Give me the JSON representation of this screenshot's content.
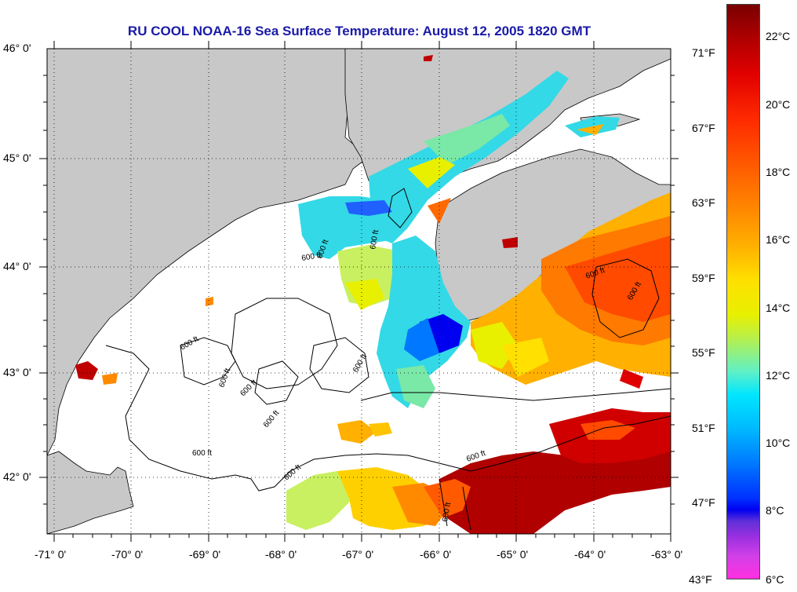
{
  "title": "RU COOL  NOAA-16  Sea Surface Temperature:  August 12, 2005 1820 GMT",
  "longitude_ticks": [
    "-71° 0'",
    "-70° 0'",
    "-69° 0'",
    "-68° 0'",
    "-67° 0'",
    "-66° 0'",
    "-65° 0'",
    "-64° 0'",
    "-63° 0'"
  ],
  "latitude_ticks": [
    "46° 0'",
    "45° 0'",
    "44° 0'",
    "43° 0'",
    "42° 0'"
  ],
  "contour_label": "600 ft",
  "colorbar": {
    "celsius": [
      "22°C",
      "20°C",
      "18°C",
      "16°C",
      "14°C",
      "12°C",
      "10°C",
      "8°C",
      "6°C"
    ],
    "fahrenheit": [
      "71°F",
      "67°F",
      "63°F",
      "59°F",
      "55°F",
      "51°F",
      "47°F",
      "43°F"
    ]
  },
  "colors": {
    "land": "#c8c8c8",
    "ocean_no_data": "#ffffff",
    "title": "#1a1aa8",
    "cold": "#0000f0",
    "cool": "#00c8ff",
    "mild": "#e8f000",
    "warm": "#ff8a00",
    "hot": "#c00000"
  }
}
